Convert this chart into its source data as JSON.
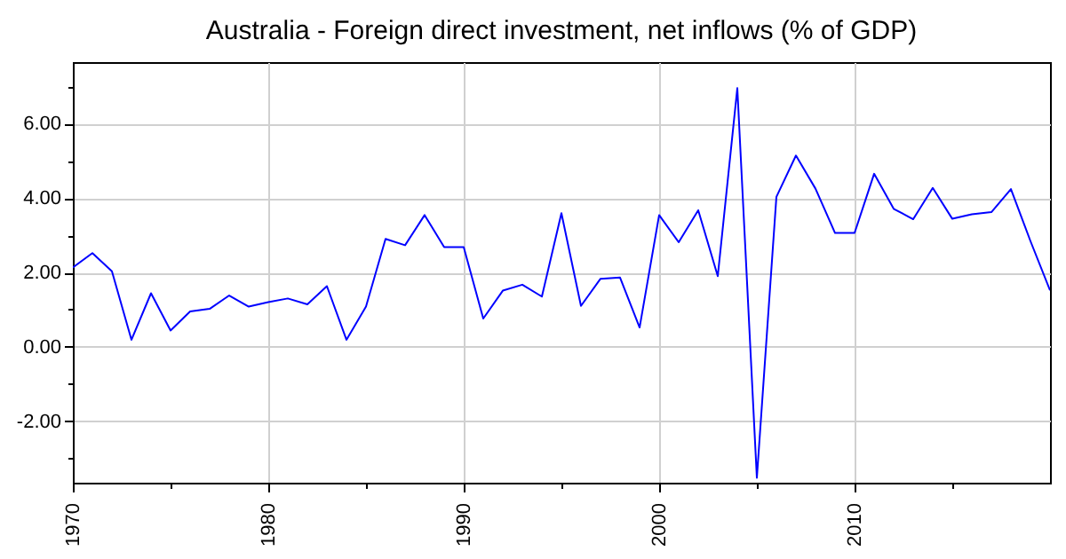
{
  "chart_data": {
    "type": "line",
    "title": "Australia - Foreign direct investment, net inflows (% of GDP)",
    "x": [
      1970,
      1971,
      1972,
      1973,
      1974,
      1975,
      1976,
      1977,
      1978,
      1979,
      1980,
      1981,
      1982,
      1983,
      1984,
      1985,
      1986,
      1987,
      1988,
      1989,
      1990,
      1991,
      1992,
      1993,
      1994,
      1995,
      1996,
      1997,
      1998,
      1999,
      2000,
      2001,
      2002,
      2003,
      2004,
      2005,
      2006,
      2007,
      2008,
      2009,
      2010,
      2011,
      2012,
      2013,
      2014,
      2015,
      2016,
      2017,
      2018,
      2019,
      2020
    ],
    "series": [
      {
        "color": "#0000ff",
        "values": [
          2.13,
          2.52,
          2.03,
          0.19,
          1.44,
          0.44,
          0.95,
          1.02,
          1.38,
          1.08,
          1.2,
          1.3,
          1.14,
          1.63,
          0.19,
          1.08,
          2.9,
          2.73,
          3.54,
          2.68,
          2.68,
          0.76,
          1.51,
          1.67,
          1.35,
          3.59,
          1.1,
          1.83,
          1.86,
          0.52,
          3.54,
          2.81,
          3.67,
          1.9,
          6.95,
          -3.52,
          4.03,
          5.14,
          4.25,
          3.06,
          3.06,
          4.65,
          3.71,
          3.43,
          4.27,
          3.44,
          3.56,
          3.62,
          4.24,
          2.84,
          1.52
        ]
      }
    ],
    "xlim": [
      1970,
      2020
    ],
    "xticks": [
      1970,
      {
        "value": 1975,
        "label": null
      },
      1980,
      {
        "value": 1985,
        "label": null
      },
      1990,
      {
        "value": 1995,
        "label": null
      },
      2000,
      {
        "value": 2005,
        "label": null
      },
      2010,
      {
        "value": 2015,
        "label": null
      }
    ],
    "ylim": [
      -3.65,
      7.65
    ],
    "yticks": [
      {
        "value": -3,
        "label": null
      },
      {
        "value": -2,
        "label": "-2.00"
      },
      {
        "value": -1,
        "label": null
      },
      {
        "value": 0,
        "label": "0.00"
      },
      {
        "value": 1,
        "label": null
      },
      {
        "value": 2,
        "label": "2.00"
      },
      {
        "value": 3,
        "label": null
      },
      {
        "value": 4,
        "label": "4.00"
      },
      {
        "value": 5,
        "label": null
      },
      {
        "value": 6,
        "label": "6.00"
      },
      {
        "value": 7,
        "label": null
      }
    ],
    "grid": true,
    "marker": "none",
    "line_style": "solid"
  }
}
